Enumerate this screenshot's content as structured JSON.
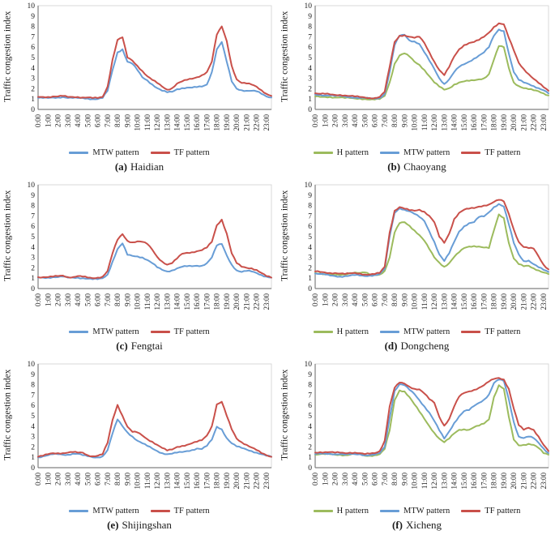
{
  "axes": {
    "y_label": "Traffic congestion index",
    "y_min": 0,
    "y_max": 10,
    "y_tick_step": 1,
    "x_tick_labels": [
      "0:00",
      "1:00",
      "2:00",
      "3:00",
      "4:00",
      "5:00",
      "6:00",
      "7:00",
      "8:00",
      "9:00",
      "10:00",
      "11:00",
      "12:00",
      "13:00",
      "14:00",
      "15:00",
      "16:00",
      "17:00",
      "18:00",
      "19:00",
      "20:00",
      "21:00",
      "22:00",
      "23:00"
    ]
  },
  "colors": {
    "h": "#9CBB5D",
    "mtw": "#689DD6",
    "tf": "#C9504A",
    "axis": "#808080",
    "plot_border": "#D9D9D9",
    "text": "#1a1a1a"
  },
  "chart_data": [
    {
      "type": "line",
      "caption_label": "(a)",
      "caption_name": "Haidian",
      "ylabel": "Traffic congestion index",
      "ylim": [
        0,
        10
      ],
      "grid": false,
      "legend_position": "bottom",
      "sample_interval_minutes": 30,
      "x_tick_labels": [
        "0:00",
        "1:00",
        "2:00",
        "3:00",
        "4:00",
        "5:00",
        "6:00",
        "7:00",
        "8:00",
        "9:00",
        "10:00",
        "11:00",
        "12:00",
        "13:00",
        "14:00",
        "15:00",
        "16:00",
        "17:00",
        "18:00",
        "19:00",
        "20:00",
        "21:00",
        "22:00",
        "23:00"
      ],
      "series": [
        {
          "name": "MTW pattern",
          "color": "#689DD6",
          "values": [
            1.1,
            1.1,
            1.1,
            1.15,
            1.15,
            1.2,
            1.1,
            1.1,
            1.1,
            1.1,
            1.05,
            1.0,
            1.0,
            1.1,
            1.8,
            3.8,
            5.5,
            5.8,
            4.6,
            4.4,
            3.8,
            3.1,
            2.8,
            2.4,
            2.05,
            1.8,
            1.65,
            1.7,
            1.95,
            2.05,
            2.1,
            2.1,
            2.15,
            2.2,
            2.4,
            3.6,
            5.8,
            6.5,
            4.6,
            2.7,
            2.0,
            1.85,
            1.8,
            1.8,
            1.75,
            1.5,
            1.25,
            1.15
          ]
        },
        {
          "name": "TF pattern",
          "color": "#C9504A",
          "values": [
            1.2,
            1.2,
            1.2,
            1.25,
            1.25,
            1.3,
            1.2,
            1.2,
            1.2,
            1.15,
            1.15,
            1.1,
            1.1,
            1.2,
            2.2,
            4.8,
            6.7,
            6.95,
            5.0,
            4.7,
            4.2,
            3.7,
            3.2,
            2.85,
            2.55,
            2.2,
            1.9,
            2.05,
            2.5,
            2.7,
            2.85,
            2.95,
            3.1,
            3.3,
            3.6,
            4.6,
            7.2,
            8.0,
            6.6,
            4.2,
            2.9,
            2.55,
            2.5,
            2.4,
            2.2,
            1.85,
            1.5,
            1.3
          ]
        }
      ]
    },
    {
      "type": "line",
      "caption_label": "(b)",
      "caption_name": "Chaoyang",
      "ylabel": "Traffic congestion index",
      "ylim": [
        0,
        10
      ],
      "grid": false,
      "legend_position": "bottom",
      "sample_interval_minutes": 30,
      "x_tick_labels": [
        "0:00",
        "1:00",
        "2:00",
        "3:00",
        "4:00",
        "5:00",
        "6:00",
        "7:00",
        "8:00",
        "9:00",
        "10:00",
        "11:00",
        "12:00",
        "13:00",
        "14:00",
        "15:00",
        "16:00",
        "17:00",
        "18:00",
        "19:00",
        "20:00",
        "21:00",
        "22:00",
        "23:00"
      ],
      "series": [
        {
          "name": "H pattern",
          "color": "#9CBB5D",
          "values": [
            1.25,
            1.2,
            1.2,
            1.2,
            1.15,
            1.15,
            1.1,
            1.1,
            1.05,
            1.05,
            1.0,
            0.95,
            0.95,
            1.0,
            1.3,
            2.6,
            4.4,
            5.2,
            5.4,
            5.1,
            4.6,
            4.3,
            3.8,
            3.2,
            2.6,
            2.2,
            1.9,
            2.05,
            2.4,
            2.6,
            2.7,
            2.75,
            2.8,
            2.9,
            3.0,
            3.4,
            4.8,
            6.1,
            6.0,
            4.0,
            2.6,
            2.25,
            2.05,
            1.95,
            1.85,
            1.75,
            1.55,
            1.35
          ]
        },
        {
          "name": "MTW pattern",
          "color": "#689DD6",
          "values": [
            1.45,
            1.4,
            1.35,
            1.35,
            1.3,
            1.3,
            1.25,
            1.2,
            1.15,
            1.1,
            1.1,
            1.05,
            1.05,
            1.1,
            1.5,
            3.6,
            6.2,
            7.1,
            7.2,
            6.65,
            6.55,
            6.3,
            5.5,
            4.7,
            3.9,
            3.0,
            2.45,
            2.9,
            3.6,
            4.1,
            4.35,
            4.6,
            4.9,
            5.2,
            5.5,
            6.0,
            7.1,
            7.7,
            7.55,
            5.4,
            3.6,
            2.85,
            2.6,
            2.45,
            2.25,
            2.05,
            1.85,
            1.55
          ]
        },
        {
          "name": "TF pattern",
          "color": "#C9504A",
          "values": [
            1.55,
            1.5,
            1.5,
            1.45,
            1.4,
            1.4,
            1.35,
            1.3,
            1.25,
            1.2,
            1.15,
            1.1,
            1.1,
            1.2,
            1.7,
            4.1,
            6.5,
            7.1,
            7.15,
            7.0,
            6.9,
            7.0,
            6.4,
            5.5,
            4.6,
            3.8,
            3.3,
            4.1,
            5.1,
            5.8,
            6.2,
            6.4,
            6.5,
            6.7,
            7.0,
            7.4,
            7.95,
            8.3,
            8.2,
            6.9,
            5.7,
            4.5,
            3.9,
            3.4,
            2.95,
            2.55,
            2.15,
            1.8
          ]
        }
      ]
    },
    {
      "type": "line",
      "caption_label": "(c)",
      "caption_name": "Fengtai",
      "ylabel": "Traffic congestion index",
      "ylim": [
        0,
        10
      ],
      "grid": false,
      "legend_position": "bottom",
      "sample_interval_minutes": 30,
      "x_tick_labels": [
        "0:00",
        "1:00",
        "2:00",
        "3:00",
        "4:00",
        "5:00",
        "6:00",
        "7:00",
        "8:00",
        "9:00",
        "10:00",
        "11:00",
        "12:00",
        "13:00",
        "14:00",
        "15:00",
        "16:00",
        "17:00",
        "18:00",
        "19:00",
        "20:00",
        "21:00",
        "22:00",
        "23:00"
      ],
      "series": [
        {
          "name": "MTW pattern",
          "color": "#689DD6",
          "values": [
            1.05,
            1.05,
            1.05,
            1.1,
            1.1,
            1.15,
            1.05,
            1.05,
            1.05,
            1.0,
            0.95,
            0.9,
            0.9,
            1.0,
            1.35,
            2.6,
            3.8,
            4.35,
            3.25,
            3.15,
            3.1,
            3.0,
            2.75,
            2.45,
            2.05,
            1.8,
            1.65,
            1.75,
            1.95,
            2.1,
            2.15,
            2.15,
            2.2,
            2.2,
            2.45,
            3.0,
            4.15,
            4.3,
            3.2,
            2.3,
            1.75,
            1.6,
            1.7,
            1.65,
            1.5,
            1.3,
            1.15,
            1.05
          ]
        },
        {
          "name": "TF pattern",
          "color": "#C9504A",
          "values": [
            1.1,
            1.1,
            1.1,
            1.15,
            1.2,
            1.25,
            1.1,
            1.1,
            1.2,
            1.15,
            1.05,
            1.0,
            1.05,
            1.15,
            1.7,
            3.4,
            4.7,
            5.25,
            4.6,
            4.45,
            4.55,
            4.5,
            4.3,
            3.75,
            3.05,
            2.6,
            2.3,
            2.45,
            2.9,
            3.35,
            3.45,
            3.5,
            3.6,
            3.7,
            3.95,
            4.5,
            6.1,
            6.65,
            5.3,
            3.4,
            2.45,
            2.1,
            2.0,
            1.95,
            1.8,
            1.5,
            1.2,
            1.05
          ]
        }
      ]
    },
    {
      "type": "line",
      "caption_label": "(d)",
      "caption_name": "Dongcheng",
      "ylabel": "Traffic congestion index",
      "ylim": [
        0,
        10
      ],
      "grid": false,
      "legend_position": "bottom",
      "sample_interval_minutes": 30,
      "x_tick_labels": [
        "0:00",
        "1:00",
        "2:00",
        "3:00",
        "4:00",
        "5:00",
        "6:00",
        "7:00",
        "8:00",
        "9:00",
        "10:00",
        "11:00",
        "12:00",
        "13:00",
        "14:00",
        "15:00",
        "16:00",
        "17:00",
        "18:00",
        "19:00",
        "20:00",
        "21:00",
        "22:00",
        "23:00"
      ],
      "series": [
        {
          "name": "H pattern",
          "color": "#9CBB5D",
          "values": [
            1.5,
            1.45,
            1.4,
            1.35,
            1.3,
            1.3,
            1.35,
            1.5,
            1.55,
            1.5,
            1.55,
            1.35,
            1.3,
            1.35,
            1.7,
            3.0,
            5.4,
            6.3,
            6.4,
            6.05,
            5.6,
            5.15,
            4.6,
            3.8,
            3.0,
            2.5,
            2.1,
            2.45,
            3.05,
            3.5,
            3.9,
            4.05,
            4.1,
            4.05,
            3.95,
            3.9,
            5.6,
            7.15,
            6.8,
            4.4,
            2.9,
            2.35,
            2.15,
            2.2,
            1.95,
            1.75,
            1.55,
            1.4
          ]
        },
        {
          "name": "MTW pattern",
          "color": "#689DD6",
          "values": [
            1.45,
            1.4,
            1.35,
            1.25,
            1.2,
            1.15,
            1.2,
            1.25,
            1.3,
            1.25,
            1.2,
            1.25,
            1.3,
            1.4,
            1.9,
            5.0,
            7.3,
            7.75,
            7.6,
            7.45,
            7.2,
            6.9,
            6.5,
            5.5,
            4.5,
            3.3,
            2.65,
            3.4,
            4.5,
            5.5,
            6.0,
            6.3,
            6.4,
            6.9,
            6.95,
            7.35,
            7.85,
            8.15,
            7.9,
            6.2,
            4.4,
            3.3,
            2.65,
            2.7,
            2.35,
            2.05,
            1.8,
            1.6
          ]
        },
        {
          "name": "TF pattern",
          "color": "#C9504A",
          "values": [
            1.65,
            1.6,
            1.55,
            1.5,
            1.5,
            1.45,
            1.4,
            1.45,
            1.5,
            1.45,
            1.35,
            1.35,
            1.4,
            1.5,
            2.1,
            5.4,
            7.5,
            7.85,
            7.7,
            7.55,
            7.5,
            7.6,
            7.4,
            7.0,
            6.4,
            5.0,
            4.4,
            5.3,
            6.7,
            7.3,
            7.6,
            7.7,
            7.75,
            7.9,
            8.0,
            8.1,
            8.35,
            8.55,
            8.4,
            7.2,
            5.7,
            4.5,
            4.0,
            3.9,
            3.85,
            3.1,
            2.3,
            1.85
          ]
        }
      ]
    },
    {
      "type": "line",
      "caption_label": "(e)",
      "caption_name": "Shijingshan",
      "ylabel": "Traffic congestion index",
      "ylim": [
        0,
        10
      ],
      "grid": false,
      "legend_position": "bottom",
      "sample_interval_minutes": 30,
      "x_tick_labels": [
        "0:00",
        "1:00",
        "2:00",
        "3:00",
        "4:00",
        "5:00",
        "6:00",
        "7:00",
        "8:00",
        "9:00",
        "10:00",
        "11:00",
        "12:00",
        "13:00",
        "14:00",
        "15:00",
        "16:00",
        "17:00",
        "18:00",
        "19:00",
        "20:00",
        "21:00",
        "22:00",
        "23:00"
      ],
      "series": [
        {
          "name": "MTW pattern",
          "color": "#689DD6",
          "values": [
            1.0,
            1.1,
            1.2,
            1.3,
            1.3,
            1.25,
            1.25,
            1.35,
            1.35,
            1.2,
            1.1,
            1.0,
            1.0,
            1.1,
            1.7,
            3.3,
            4.65,
            4.0,
            3.4,
            3.0,
            2.6,
            2.35,
            2.1,
            1.85,
            1.6,
            1.4,
            1.3,
            1.35,
            1.45,
            1.5,
            1.6,
            1.7,
            1.85,
            1.8,
            2.1,
            2.7,
            3.95,
            3.7,
            2.85,
            2.35,
            2.05,
            1.9,
            1.75,
            1.6,
            1.45,
            1.3,
            1.15,
            1.05
          ]
        },
        {
          "name": "TF pattern",
          "color": "#C9504A",
          "values": [
            1.05,
            1.15,
            1.3,
            1.4,
            1.4,
            1.4,
            1.45,
            1.5,
            1.45,
            1.45,
            1.2,
            1.1,
            1.15,
            1.3,
            2.4,
            4.6,
            6.05,
            5.0,
            3.95,
            3.45,
            3.4,
            3.1,
            2.75,
            2.5,
            2.2,
            1.9,
            1.65,
            1.75,
            2.0,
            2.1,
            2.2,
            2.35,
            2.5,
            2.65,
            3.1,
            4.0,
            6.1,
            6.35,
            5.0,
            3.7,
            2.8,
            2.45,
            2.2,
            1.95,
            1.7,
            1.4,
            1.2,
            1.05
          ]
        }
      ]
    },
    {
      "type": "line",
      "caption_label": "(f)",
      "caption_name": "Xicheng",
      "ylabel": "Traffic congestion index",
      "ylim": [
        0,
        10
      ],
      "grid": false,
      "legend_position": "bottom",
      "sample_interval_minutes": 30,
      "x_tick_labels": [
        "0:00",
        "1:00",
        "2:00",
        "3:00",
        "4:00",
        "5:00",
        "6:00",
        "7:00",
        "8:00",
        "9:00",
        "10:00",
        "11:00",
        "12:00",
        "13:00",
        "14:00",
        "15:00",
        "16:00",
        "17:00",
        "18:00",
        "19:00",
        "20:00",
        "21:00",
        "22:00",
        "23:00"
      ],
      "series": [
        {
          "name": "H pattern",
          "color": "#9CBB5D",
          "values": [
            1.25,
            1.3,
            1.3,
            1.3,
            1.25,
            1.25,
            1.2,
            1.25,
            1.35,
            1.3,
            1.15,
            1.15,
            1.2,
            1.3,
            1.8,
            3.6,
            6.5,
            7.45,
            7.35,
            6.8,
            6.1,
            5.4,
            4.7,
            4.0,
            3.35,
            2.8,
            2.45,
            2.8,
            3.3,
            3.65,
            3.7,
            3.65,
            3.9,
            4.05,
            4.25,
            4.65,
            6.8,
            7.95,
            7.6,
            4.9,
            2.7,
            2.15,
            2.2,
            2.3,
            2.2,
            1.9,
            1.4,
            1.25
          ]
        },
        {
          "name": "MTW pattern",
          "color": "#689DD6",
          "values": [
            1.3,
            1.35,
            1.35,
            1.35,
            1.3,
            1.3,
            1.25,
            1.3,
            1.3,
            1.3,
            1.2,
            1.2,
            1.25,
            1.4,
            2.0,
            4.8,
            7.4,
            8.05,
            7.95,
            7.5,
            7.1,
            6.5,
            5.9,
            5.3,
            4.5,
            3.6,
            2.8,
            3.5,
            4.3,
            4.95,
            5.45,
            5.55,
            5.95,
            6.25,
            6.55,
            7.05,
            8.15,
            8.5,
            8.35,
            6.6,
            4.4,
            3.0,
            2.85,
            3.0,
            2.85,
            2.4,
            1.85,
            1.4
          ]
        },
        {
          "name": "TF pattern",
          "color": "#C9504A",
          "values": [
            1.45,
            1.5,
            1.5,
            1.5,
            1.45,
            1.45,
            1.4,
            1.45,
            1.45,
            1.4,
            1.3,
            1.35,
            1.4,
            1.6,
            2.6,
            5.9,
            7.7,
            8.2,
            8.1,
            7.8,
            7.6,
            7.55,
            7.15,
            6.6,
            6.25,
            4.9,
            4.05,
            4.7,
            5.9,
            6.85,
            7.2,
            7.35,
            7.5,
            7.7,
            7.95,
            8.3,
            8.55,
            8.65,
            8.5,
            7.6,
            5.7,
            4.1,
            3.65,
            3.85,
            3.65,
            3.0,
            2.2,
            1.6
          ]
        }
      ]
    }
  ]
}
